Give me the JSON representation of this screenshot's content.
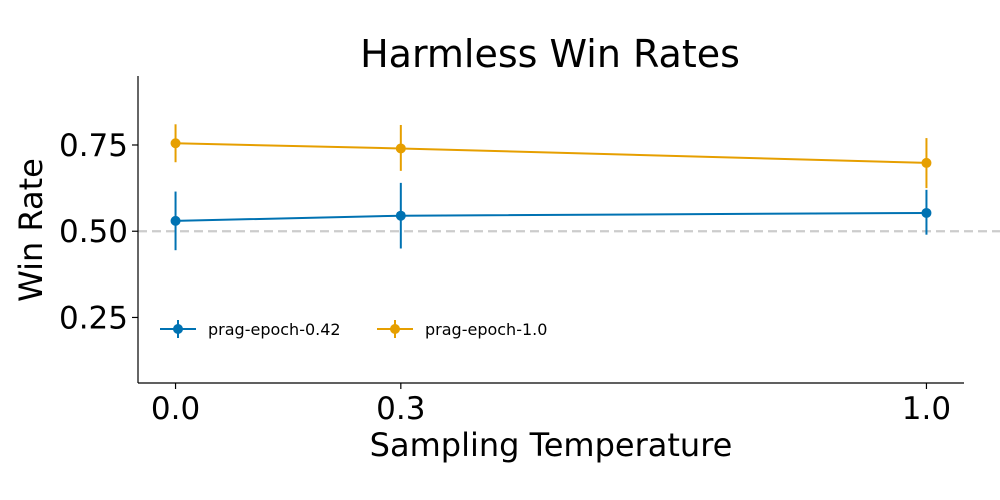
{
  "chart_data": {
    "type": "line",
    "title": "Harmless Win Rates",
    "xlabel": "Sampling Temperature",
    "ylabel": "Win Rate",
    "x": [
      0.0,
      0.3,
      1.0
    ],
    "x_tick_labels": [
      "0.0",
      "0.3",
      "1.0"
    ],
    "y_ticks": [
      0.25,
      0.5,
      0.75
    ],
    "y_tick_labels": [
      "0.25",
      "0.50",
      "0.75"
    ],
    "xlim": [
      -0.05,
      1.05
    ],
    "ylim": [
      0.06,
      0.95
    ],
    "reference_line": {
      "y": 0.5,
      "style": "dashed",
      "color": "#cccccc"
    },
    "grid": false,
    "legend_position": "lower-left",
    "series": [
      {
        "name": "prag-epoch-0.42",
        "color": "#0072b2",
        "values": [
          0.53,
          0.545,
          0.553
        ],
        "error_low": [
          0.445,
          0.45,
          0.49
        ],
        "error_high": [
          0.615,
          0.64,
          0.62
        ]
      },
      {
        "name": "prag-epoch-1.0",
        "color": "#e69f00",
        "values": [
          0.755,
          0.74,
          0.698
        ],
        "error_low": [
          0.7,
          0.675,
          0.625
        ],
        "error_high": [
          0.81,
          0.808,
          0.77
        ]
      }
    ]
  }
}
